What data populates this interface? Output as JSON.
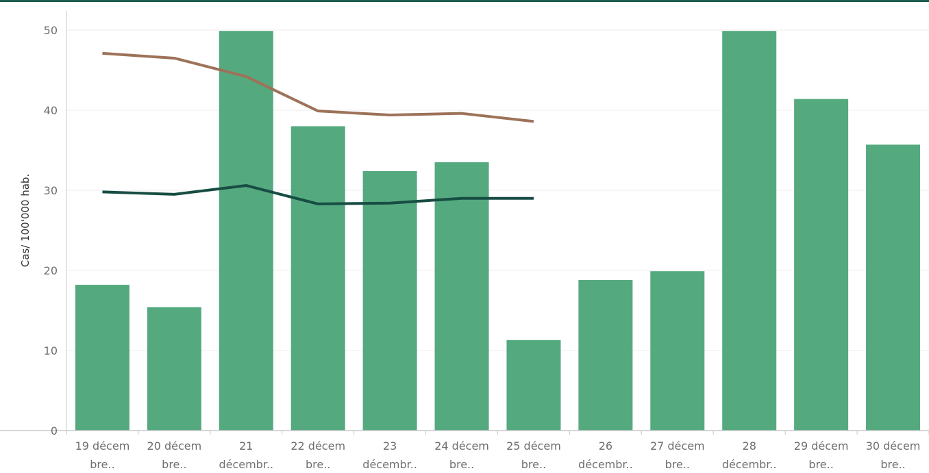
{
  "colors": {
    "top_rule": "#1d5e4f",
    "bars": "#55a97f",
    "line_dark": "#174d43",
    "line_brown": "#9d7259",
    "grid": "#ececec",
    "axis": "#c8c8c8"
  },
  "chart_data": {
    "type": "bar",
    "title": "",
    "xlabel": "",
    "ylabel": "Cas/ 100'000 hab.",
    "ylim": [
      0,
      50
    ],
    "y_ticks": [
      0,
      10,
      20,
      30,
      40,
      50
    ],
    "grid": true,
    "categories": [
      [
        "19 décem",
        "bre.."
      ],
      [
        "20 décem",
        "bre.."
      ],
      [
        "21",
        "décembr.."
      ],
      [
        "22 décem",
        "bre.."
      ],
      [
        "23",
        "décembr.."
      ],
      [
        "24 décem",
        "bre.."
      ],
      [
        "25 décem",
        "bre.."
      ],
      [
        "26",
        "décembr.."
      ],
      [
        "27 décem",
        "bre.."
      ],
      [
        "28",
        "décembr.."
      ],
      [
        "29 décem",
        "bre.."
      ],
      [
        "30 décem",
        "bre.."
      ]
    ],
    "bars": [
      18.2,
      15.4,
      49.9,
      38.0,
      32.4,
      33.5,
      11.3,
      18.8,
      19.9,
      49.9,
      41.4,
      35.7
    ],
    "lines": [
      {
        "color": "#9d7259",
        "values": [
          47.1,
          46.5,
          44.2,
          39.9,
          39.4,
          39.6,
          38.6
        ]
      },
      {
        "color": "#174d43",
        "values": [
          29.8,
          29.5,
          30.6,
          28.3,
          28.4,
          29.0,
          29.0
        ]
      }
    ]
  }
}
